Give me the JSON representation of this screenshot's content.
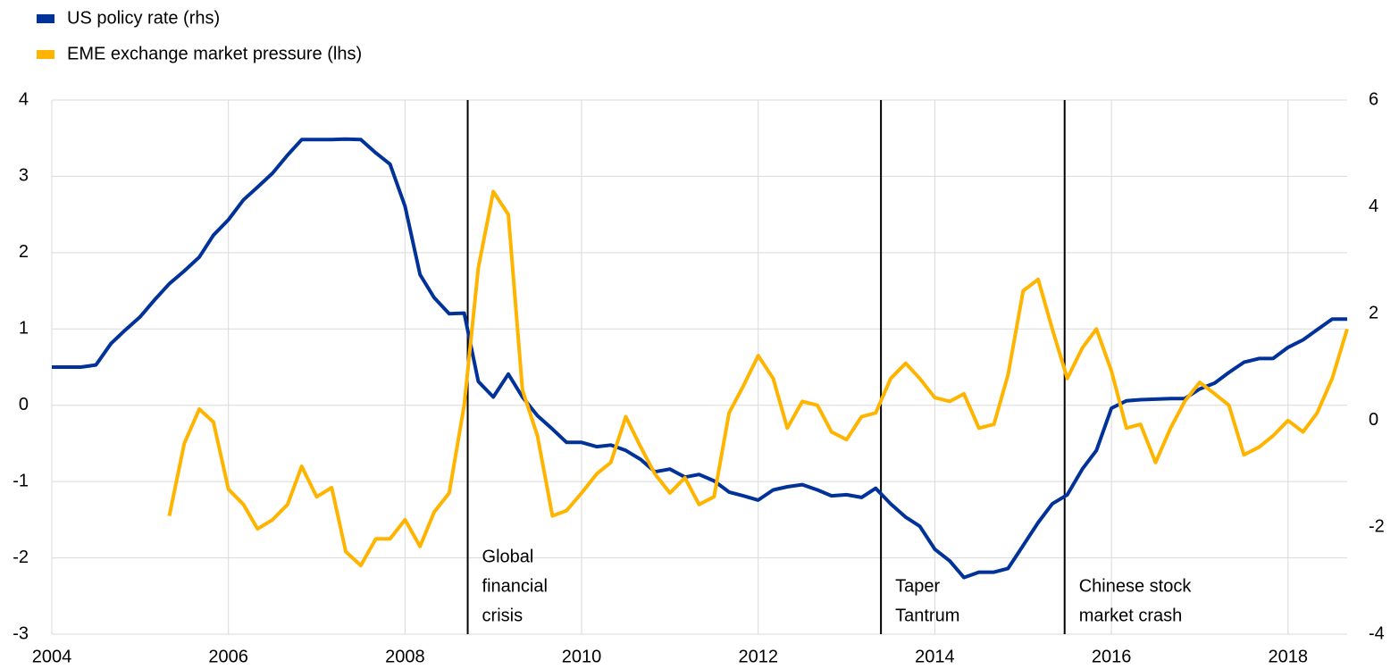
{
  "chart_data": {
    "type": "line",
    "x": [
      2004,
      2004.17,
      2004.33,
      2004.5,
      2004.67,
      2004.83,
      2005,
      2005.17,
      2005.33,
      2005.5,
      2005.67,
      2005.83,
      2006,
      2006.17,
      2006.33,
      2006.5,
      2006.67,
      2006.83,
      2007,
      2007.17,
      2007.33,
      2007.5,
      2007.67,
      2007.83,
      2008,
      2008.17,
      2008.33,
      2008.5,
      2008.67,
      2008.83,
      2009,
      2009.17,
      2009.33,
      2009.5,
      2009.67,
      2009.83,
      2010,
      2010.17,
      2010.33,
      2010.5,
      2010.67,
      2010.83,
      2011,
      2011.17,
      2011.33,
      2011.5,
      2011.67,
      2011.83,
      2012,
      2012.17,
      2012.33,
      2012.5,
      2012.67,
      2012.83,
      2013,
      2013.17,
      2013.33,
      2013.5,
      2013.67,
      2013.83,
      2014,
      2014.17,
      2014.33,
      2014.5,
      2014.67,
      2014.83,
      2015,
      2015.17,
      2015.33,
      2015.5,
      2015.67,
      2015.83,
      2016,
      2016.17,
      2016.33,
      2016.5,
      2016.67,
      2016.83,
      2017,
      2017.17,
      2017.33,
      2017.5,
      2017.67,
      2017.83,
      2018,
      2018.17,
      2018.33,
      2018.5,
      2018.67
    ],
    "series": [
      {
        "name": "US policy rate (rhs)",
        "color": "#003299",
        "axis": "y2",
        "values": [
          1.0,
          1.0,
          1.0,
          1.04,
          1.44,
          1.69,
          1.94,
          2.27,
          2.56,
          2.8,
          3.06,
          3.47,
          3.76,
          4.13,
          4.37,
          4.63,
          4.97,
          5.26,
          5.26,
          5.26,
          5.27,
          5.26,
          5.01,
          4.8,
          4.01,
          2.73,
          2.3,
          2.0,
          2.01,
          0.73,
          0.44,
          0.87,
          0.44,
          0.09,
          -0.16,
          -0.41,
          -0.41,
          -0.49,
          -0.46,
          -0.56,
          -0.73,
          -0.96,
          -0.91,
          -1.06,
          -1.01,
          -1.13,
          -1.34,
          -1.41,
          -1.49,
          -1.3,
          -1.24,
          -1.2,
          -1.3,
          -1.41,
          -1.39,
          -1.44,
          -1.27,
          -1.56,
          -1.81,
          -1.98,
          -2.41,
          -2.63,
          -2.94,
          -2.84,
          -2.84,
          -2.77,
          -2.34,
          -1.91,
          -1.56,
          -1.39,
          -0.91,
          -0.56,
          0.23,
          0.37,
          0.39,
          0.4,
          0.41,
          0.41,
          0.59,
          0.7,
          0.9,
          1.09,
          1.16,
          1.16,
          1.37,
          1.51,
          1.7,
          1.9,
          1.9
        ]
      },
      {
        "name": "EME exchange market pressure (lhs)",
        "color": "#ffb400",
        "values": [
          null,
          null,
          null,
          null,
          null,
          null,
          null,
          null,
          -1.45,
          -0.5,
          -0.05,
          -0.22,
          -1.1,
          -1.3,
          -1.62,
          -1.5,
          -1.3,
          -0.8,
          -1.2,
          -1.08,
          -1.92,
          -2.1,
          -1.75,
          -1.75,
          -1.5,
          -1.85,
          -1.4,
          -1.15,
          0.0,
          1.8,
          2.8,
          2.5,
          0.2,
          -0.4,
          -1.45,
          -1.38,
          -1.15,
          -0.9,
          -0.75,
          -0.15,
          -0.55,
          -0.9,
          -1.15,
          -0.95,
          -1.3,
          -1.2,
          -0.1,
          0.25,
          0.65,
          0.35,
          -0.3,
          0.05,
          0.0,
          -0.35,
          -0.45,
          -0.15,
          -0.1,
          0.35,
          0.55,
          0.35,
          0.1,
          0.05,
          0.15,
          -0.3,
          -0.25,
          0.4,
          1.5,
          1.65,
          1.0,
          0.35,
          0.75,
          1.0,
          0.45,
          -0.3,
          -0.25,
          -0.75,
          -0.3,
          0.05,
          0.3,
          0.15,
          0.0,
          -0.65,
          -0.55,
          -0.4,
          -0.2,
          -0.35,
          -0.1,
          0.35,
          1.0
        ]
      }
    ],
    "xlim": [
      2004,
      2018.67
    ],
    "xticks": [
      2004,
      2006,
      2008,
      2010,
      2012,
      2014,
      2016,
      2018
    ],
    "ylim": [
      -3,
      4
    ],
    "yticks": [
      -3,
      -2,
      -1,
      0,
      1,
      2,
      3,
      4
    ],
    "y2lim": [
      -4,
      6
    ],
    "y2ticks": [
      -4,
      -2,
      0,
      2,
      4,
      6
    ],
    "grid": true,
    "annotations": [
      {
        "x": 2008.71,
        "lines": [
          "Global",
          "financial",
          "crisis"
        ]
      },
      {
        "x": 2013.39,
        "lines": [
          "Taper",
          "Tantrum"
        ]
      },
      {
        "x": 2015.47,
        "lines": [
          "Chinese stock",
          "market crash"
        ]
      }
    ]
  }
}
